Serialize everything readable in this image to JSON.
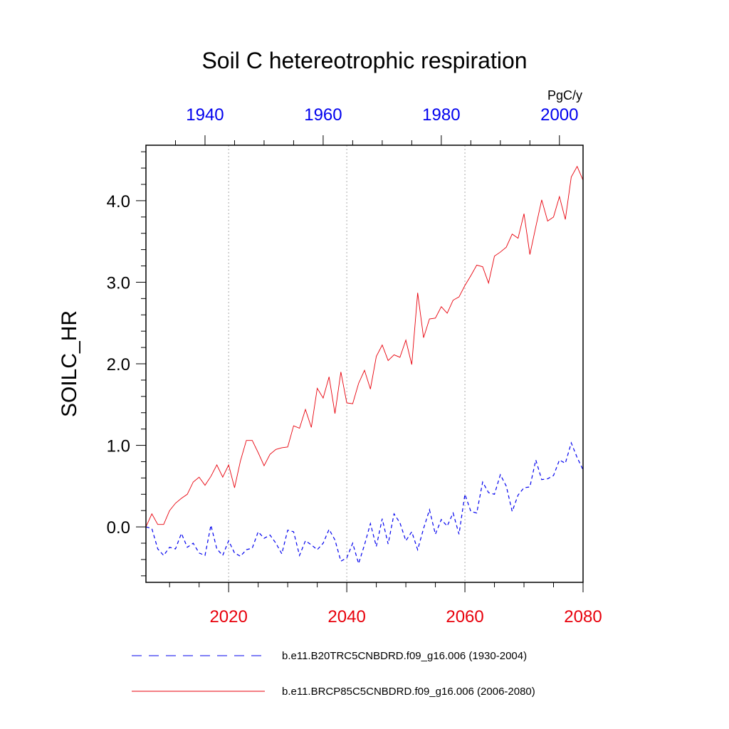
{
  "chart_data": {
    "type": "line",
    "title": "Soil C hetereotrophic respiration",
    "ylabel": "SOILC_HR",
    "units": "PgC/y",
    "ylim": [
      -0.68,
      4.68
    ],
    "yticks": [
      "0.0",
      "1.0",
      "2.0",
      "3.0",
      "4.0"
    ],
    "ytick_values": [
      0,
      1,
      2,
      3,
      4
    ],
    "bottom_axis": {
      "color": "#e8000b",
      "range": [
        2006,
        2080
      ],
      "ticks": [
        2020,
        2040,
        2060,
        2080
      ],
      "tick_labels": [
        "2020",
        "2040",
        "2060",
        "2080"
      ]
    },
    "top_axis": {
      "color": "#0000ee",
      "range": [
        1930,
        2004
      ],
      "ticks": [
        1940,
        1960,
        1980,
        2000
      ],
      "tick_labels": [
        "1940",
        "1960",
        "1980",
        "2000"
      ]
    },
    "grid": "vertical dotted at major bottom ticks",
    "legend_placement": "bottom",
    "series": [
      {
        "name": "b.e11.B20TRC5CNBDRD.f09_g16.006 (1930-2004)",
        "axis": "top",
        "color": "#0000ee",
        "style": "dashed",
        "x_start": 1930,
        "values": [
          0.0,
          -0.02,
          -0.27,
          -0.35,
          -0.25,
          -0.27,
          -0.08,
          -0.25,
          -0.2,
          -0.32,
          -0.35,
          0.02,
          -0.27,
          -0.35,
          -0.17,
          -0.32,
          -0.36,
          -0.28,
          -0.26,
          -0.06,
          -0.14,
          -0.1,
          -0.2,
          -0.33,
          -0.04,
          -0.06,
          -0.35,
          -0.17,
          -0.22,
          -0.28,
          -0.2,
          -0.03,
          -0.16,
          -0.42,
          -0.38,
          -0.2,
          -0.45,
          -0.22,
          0.04,
          -0.24,
          0.1,
          -0.21,
          0.16,
          0.05,
          -0.17,
          -0.06,
          -0.28,
          -0.02,
          0.21,
          -0.09,
          0.09,
          0.01,
          0.17,
          -0.09,
          0.4,
          0.19,
          0.17,
          0.55,
          0.42,
          0.4,
          0.64,
          0.5,
          0.19,
          0.39,
          0.48,
          0.49,
          0.82,
          0.58,
          0.59,
          0.63,
          0.82,
          0.78,
          1.03,
          0.85,
          0.7
        ]
      },
      {
        "name": "b.e11.BRCP85C5CNBDRD.f09_g16.006 (2006-2080)",
        "axis": "bottom",
        "color": "#e8000b",
        "style": "solid",
        "x_start": 2006,
        "values": [
          0.0,
          0.16,
          0.03,
          0.03,
          0.2,
          0.29,
          0.35,
          0.4,
          0.55,
          0.61,
          0.51,
          0.62,
          0.76,
          0.61,
          0.76,
          0.48,
          0.81,
          1.06,
          1.06,
          0.91,
          0.75,
          0.89,
          0.95,
          0.97,
          0.98,
          1.24,
          1.21,
          1.44,
          1.22,
          1.7,
          1.58,
          1.84,
          1.39,
          1.9,
          1.52,
          1.51,
          1.76,
          1.92,
          1.69,
          2.09,
          2.23,
          2.04,
          2.11,
          2.08,
          2.29,
          1.99,
          2.87,
          2.32,
          2.55,
          2.56,
          2.7,
          2.62,
          2.78,
          2.82,
          2.96,
          3.08,
          3.21,
          3.19,
          2.99,
          3.32,
          3.37,
          3.43,
          3.59,
          3.54,
          3.84,
          3.34,
          3.68,
          4.01,
          3.75,
          3.8,
          4.05,
          3.77,
          4.29,
          4.42,
          4.25
        ]
      }
    ]
  }
}
